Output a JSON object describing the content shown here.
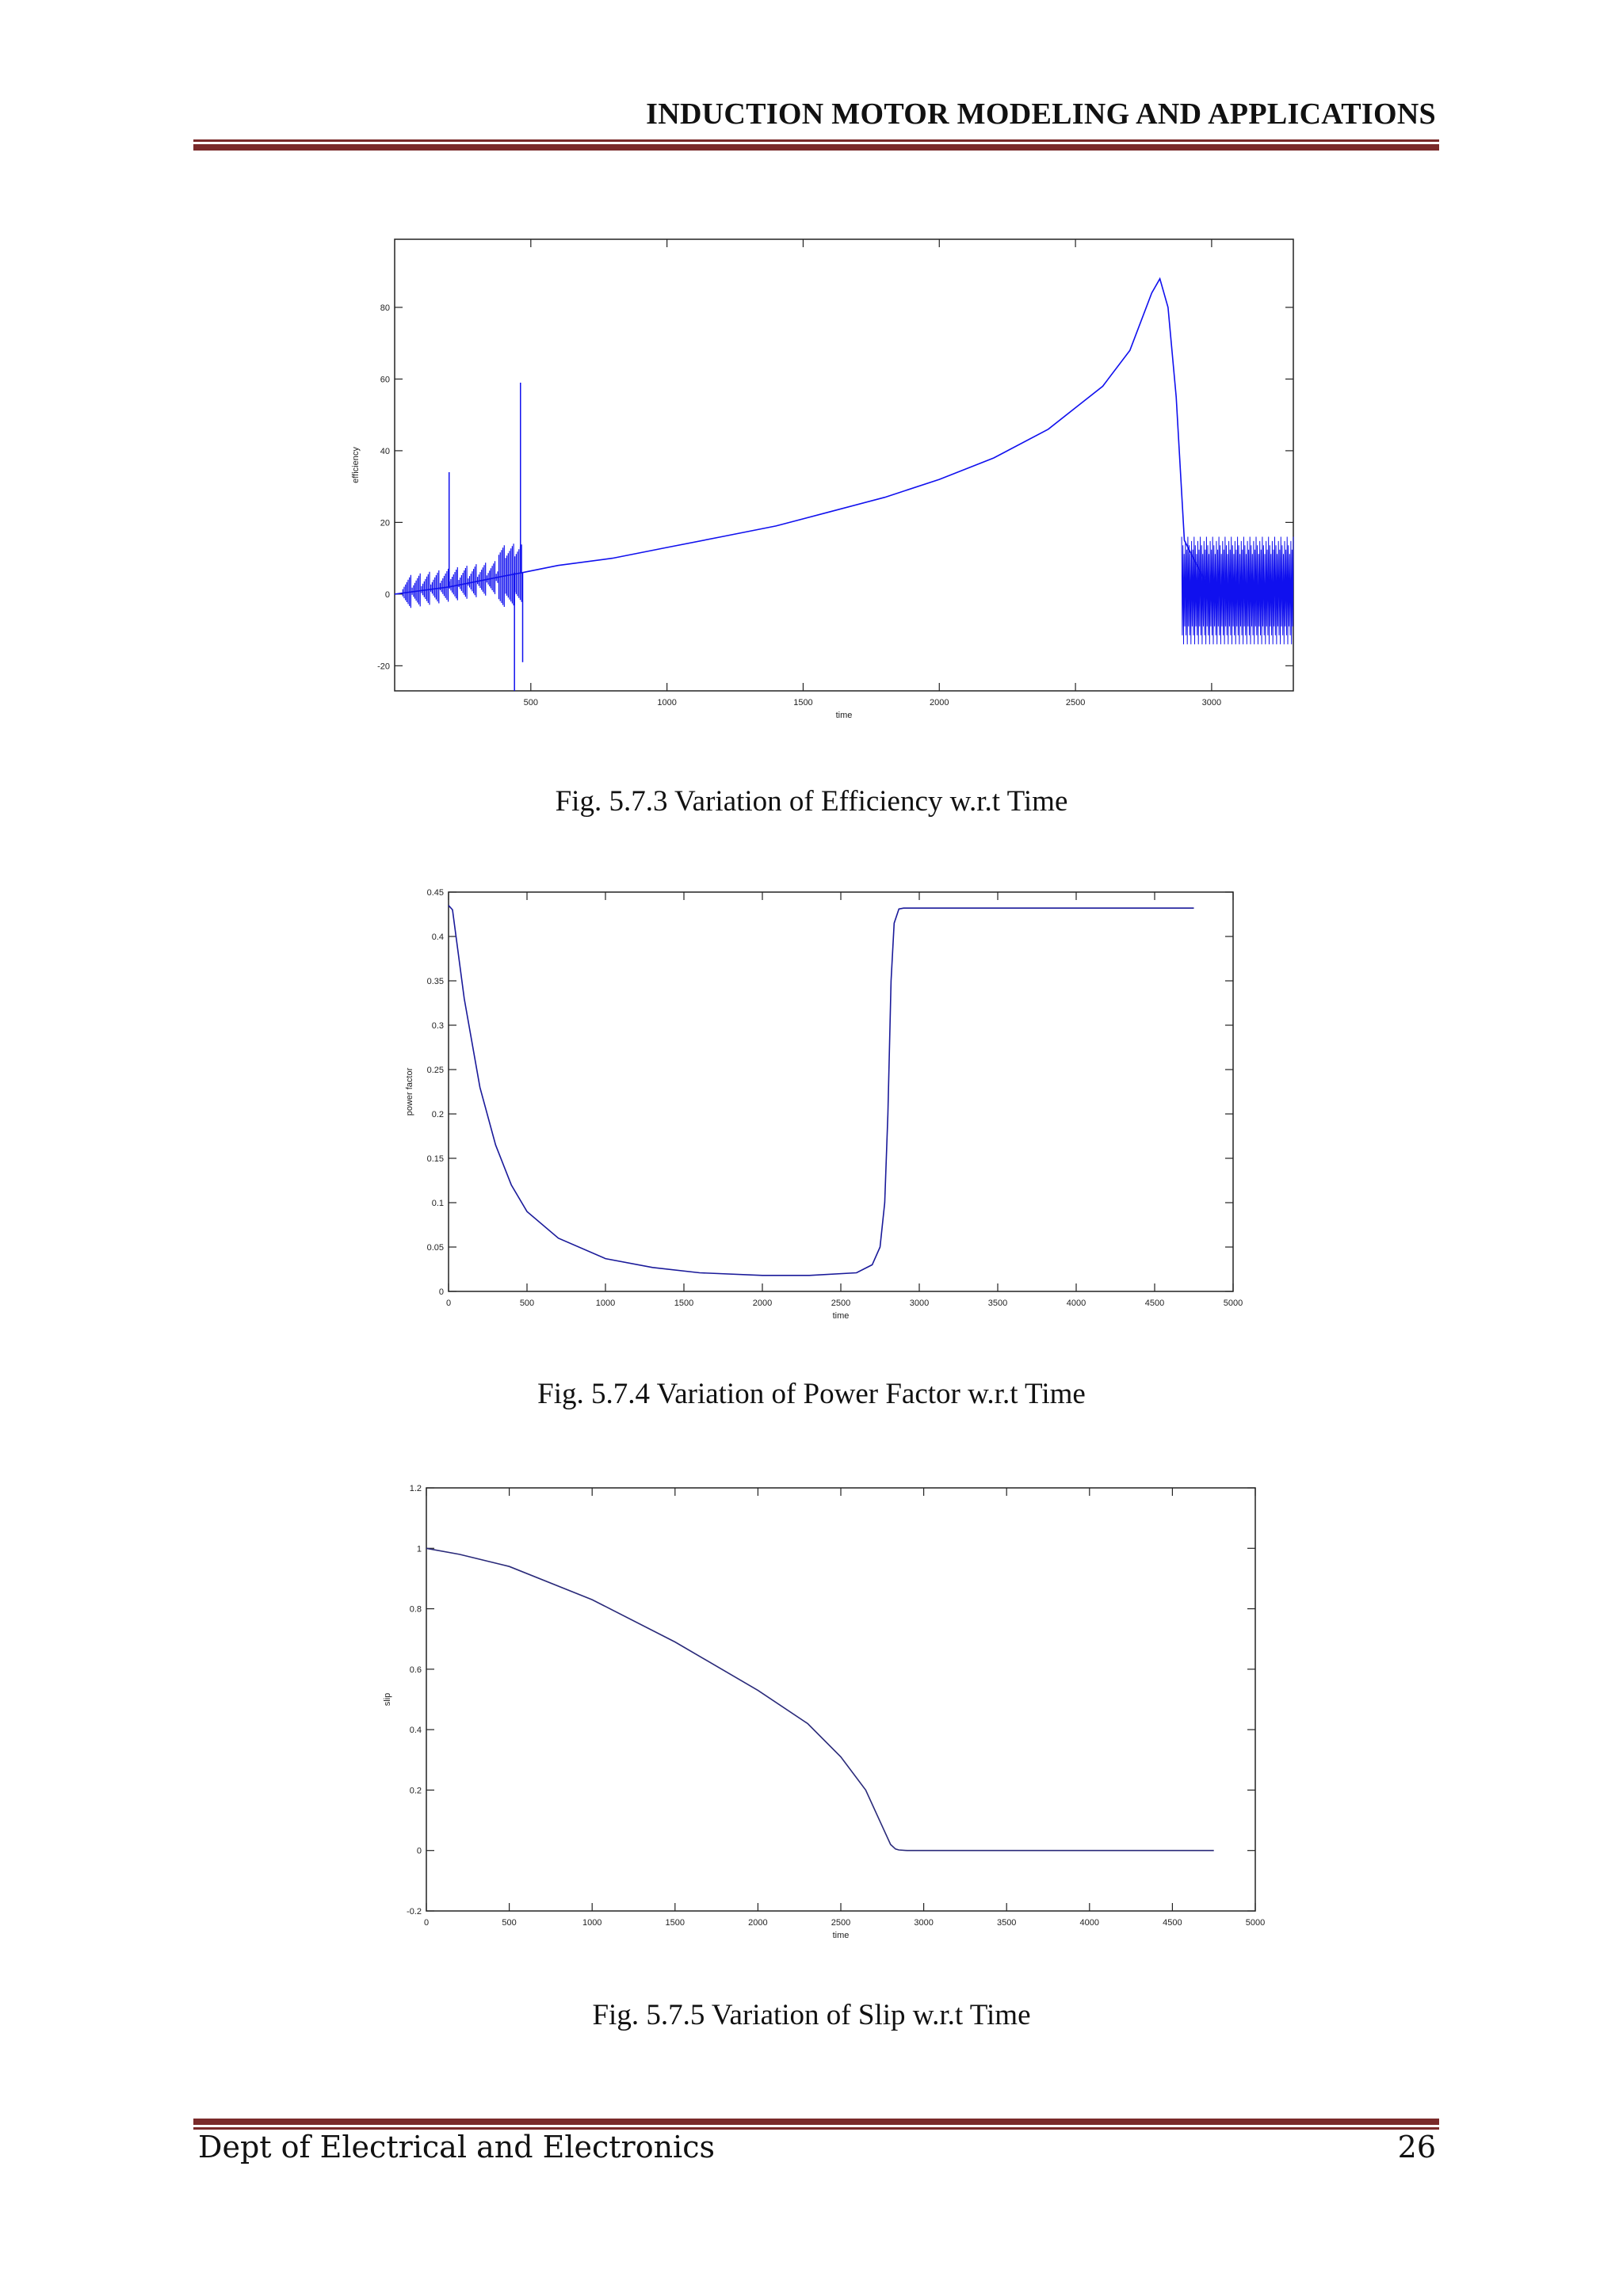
{
  "header": {
    "title": "INDUCTION MOTOR MODELING AND APPLICATIONS"
  },
  "footer": {
    "left": "Dept of Electrical and Electronics",
    "page_number": "26"
  },
  "figures": [
    {
      "caption": "Fig. 5.7.3 Variation of Efficiency w.r.t Time"
    },
    {
      "caption": "Fig. 5.7.4 Variation of Power Factor  w.r.t Time"
    },
    {
      "caption": "Fig. 5.7.5 Variation of Slip w.r.t Time"
    }
  ],
  "chart_data": [
    {
      "type": "line",
      "xlabel": "time",
      "ylabel": "efficiency",
      "xlim": [
        0,
        3300
      ],
      "ylim": [
        -27,
        99
      ],
      "xticks": [
        500,
        1000,
        1500,
        2000,
        2500,
        3000
      ],
      "yticks": [
        -20,
        0,
        20,
        40,
        60,
        80
      ],
      "color": "#1010ee",
      "series": [
        {
          "x": [
            0,
            200,
            400,
            470,
            600,
            800,
            1000,
            1200,
            1400,
            1600,
            1800,
            2000,
            2200,
            2400,
            2600,
            2700,
            2780,
            2810,
            2840,
            2870,
            2900,
            3000,
            3300
          ],
          "y": [
            0,
            2,
            5,
            6,
            8,
            10,
            13,
            16,
            19,
            23,
            27,
            32,
            38,
            46,
            58,
            68,
            84,
            88,
            80,
            55,
            15,
            0,
            0
          ]
        }
      ],
      "annotations": {
        "spikes": [
          [
            200,
            34
          ],
          [
            462,
            59
          ],
          [
            440,
            -27
          ],
          [
            470,
            -19
          ]
        ],
        "oscillation_band": {
          "x_from": 2890,
          "x_to": 3300,
          "y_min": -14,
          "y_max": 16
        }
      }
    },
    {
      "type": "line",
      "xlabel": "time",
      "ylabel": "power factor",
      "xlim": [
        0,
        5000
      ],
      "ylim": [
        0,
        0.45
      ],
      "xticks": [
        0,
        500,
        1000,
        1500,
        2000,
        2500,
        3000,
        3500,
        4000,
        4500,
        5000
      ],
      "yticks": [
        0,
        0.05,
        0.1,
        0.15,
        0.2,
        0.25,
        0.3,
        0.35,
        0.4,
        0.45
      ],
      "color": "#1a1a9a",
      "series": [
        {
          "x": [
            0,
            25,
            100,
            200,
            300,
            400,
            500,
            700,
            1000,
            1300,
            1600,
            2000,
            2300,
            2600,
            2700,
            2750,
            2780,
            2800,
            2820,
            2840,
            2870,
            2900,
            4750
          ],
          "y": [
            0.435,
            0.43,
            0.33,
            0.23,
            0.165,
            0.12,
            0.09,
            0.06,
            0.037,
            0.027,
            0.021,
            0.018,
            0.018,
            0.021,
            0.03,
            0.05,
            0.1,
            0.2,
            0.35,
            0.415,
            0.431,
            0.432,
            0.432
          ]
        }
      ]
    },
    {
      "type": "line",
      "xlabel": "time",
      "ylabel": "slip",
      "xlim": [
        0,
        5000
      ],
      "ylim": [
        -0.2,
        1.2
      ],
      "xticks": [
        0,
        500,
        1000,
        1500,
        2000,
        2500,
        3000,
        3500,
        4000,
        4500,
        5000
      ],
      "yticks": [
        -0.2,
        0,
        0.2,
        0.4,
        0.6,
        0.8,
        1,
        1.2
      ],
      "color": "#2a2a7a",
      "series": [
        {
          "x": [
            0,
            200,
            500,
            1000,
            1500,
            2000,
            2300,
            2500,
            2650,
            2750,
            2800,
            2830,
            2850,
            2900,
            4750
          ],
          "y": [
            1.0,
            0.98,
            0.94,
            0.83,
            0.69,
            0.53,
            0.42,
            0.31,
            0.2,
            0.08,
            0.02,
            0.005,
            0.002,
            0.0,
            0.0
          ]
        }
      ]
    }
  ]
}
